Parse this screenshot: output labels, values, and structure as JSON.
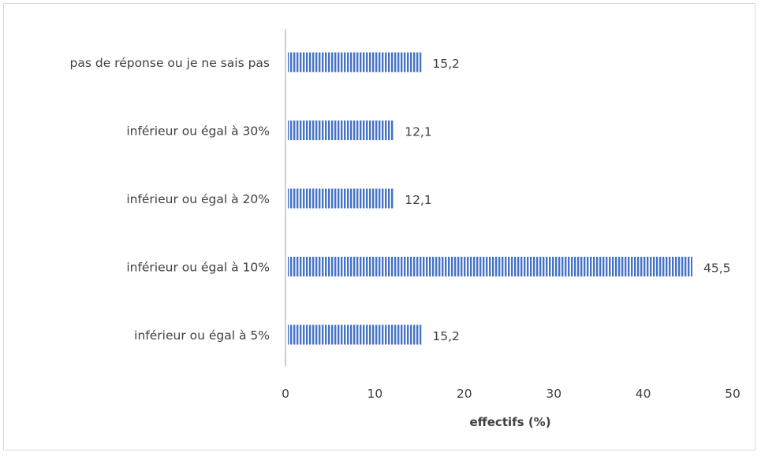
{
  "chart_data": {
    "type": "bar",
    "orientation": "horizontal",
    "categories": [
      "pas de réponse ou je ne sais pas",
      "inférieur ou égal à 30%",
      "inférieur ou égal à 20%",
      "inférieur ou égal à 10%",
      "inférieur ou égal à 5%"
    ],
    "values": [
      15.2,
      12.1,
      12.1,
      45.5,
      15.2
    ],
    "value_labels": [
      "15,2",
      "12,1",
      "12,1",
      "45,5",
      "15,2"
    ],
    "xlabel": "effectifs (%)",
    "ylabel": "",
    "xlim": [
      0,
      50
    ],
    "xticks": [
      0,
      10,
      20,
      30,
      40,
      50
    ],
    "xtick_labels": [
      "0",
      "10",
      "20",
      "30",
      "40",
      "50"
    ],
    "grid": false,
    "bar_color": "#4472c4",
    "bar_pattern": "vertical-stripes"
  }
}
